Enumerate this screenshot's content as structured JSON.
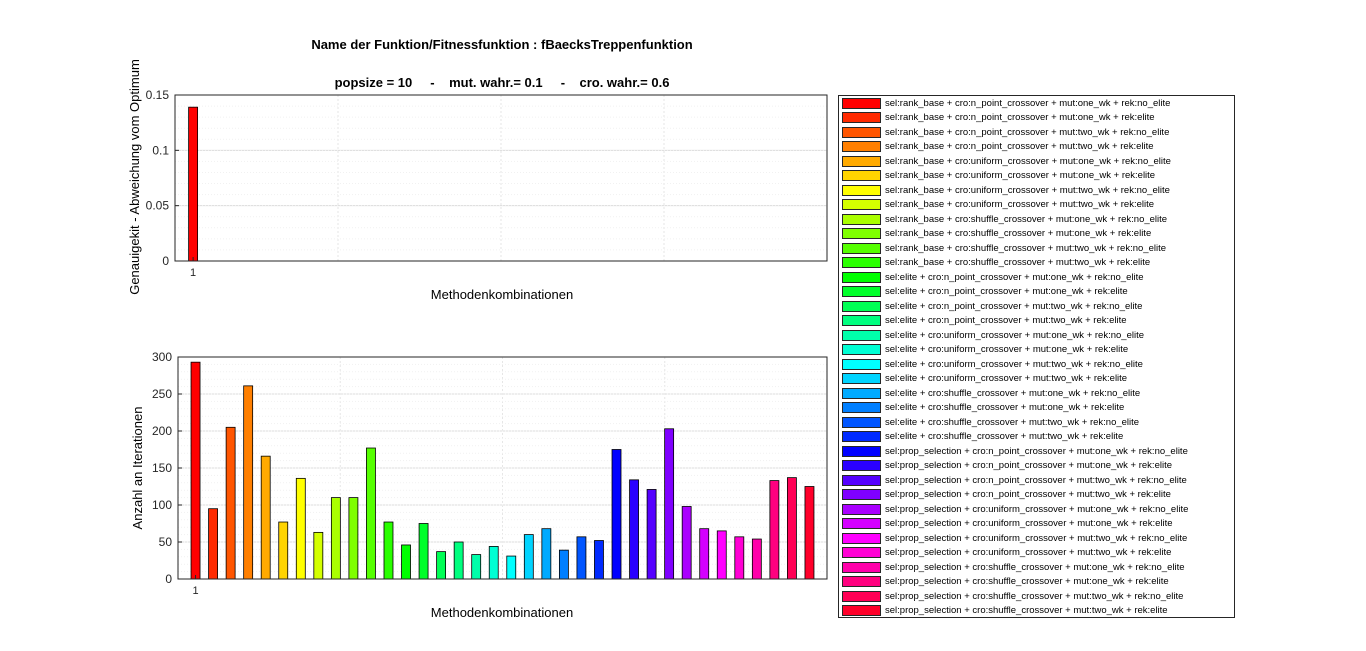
{
  "figure": {
    "title_line1": "Name der Funktion/Fitnessfunktion : fBaecksTreppenfunktion",
    "title_line2": "popsize = 10     -    mut. wahr.= 0.1     -    cro. wahr.= 0.6"
  },
  "chart_data": [
    {
      "type": "bar",
      "title": "",
      "xlabel": "Methodenkombinationen",
      "ylabel": "Genauigekit - Abweichung vom Optimum",
      "xlim": [
        0,
        36
      ],
      "ylim": [
        0,
        0.15
      ],
      "yticks": [
        0,
        0.05,
        0.1,
        0.15
      ],
      "ytick_labels": [
        "0",
        "0.05",
        "0.1",
        "0.15"
      ],
      "xticks": [
        1
      ],
      "xtick_labels": [
        "1"
      ],
      "grid": true,
      "categories": [
        1
      ],
      "values": [
        0.139
      ],
      "colors": [
        "#ff0000"
      ]
    },
    {
      "type": "bar",
      "title": "",
      "xlabel": "Methodenkombinationen",
      "ylabel": "Anzahl an Iterationen",
      "xlim": [
        0,
        37
      ],
      "ylim": [
        0,
        300
      ],
      "yticks": [
        0,
        50,
        100,
        150,
        200,
        250,
        300
      ],
      "ytick_labels": [
        "0",
        "50",
        "100",
        "150",
        "200",
        "250",
        "300"
      ],
      "xticks": [
        1
      ],
      "xtick_labels": [
        "1"
      ],
      "grid": true,
      "categories": [
        1,
        2,
        3,
        4,
        5,
        6,
        7,
        8,
        9,
        10,
        11,
        12,
        13,
        14,
        15,
        16,
        17,
        18,
        19,
        20,
        21,
        22,
        23,
        24,
        25,
        26,
        27,
        28,
        29,
        30,
        31,
        32,
        33,
        34,
        35,
        36
      ],
      "values": [
        293,
        95,
        205,
        261,
        166,
        77,
        136,
        63,
        110,
        110,
        177,
        77,
        46,
        75,
        37,
        50,
        33,
        44,
        31,
        60,
        68,
        39,
        57,
        52,
        175,
        134,
        121,
        203,
        98,
        68,
        65,
        57,
        54,
        133,
        137,
        125
      ]
    }
  ],
  "legend": {
    "placement": "right",
    "items": [
      {
        "label": "sel:rank_base + cro:n_point_crossover +  mut:one_wk +  rek:no_elite",
        "color": "#ff0000"
      },
      {
        "label": "sel:rank_base + cro:n_point_crossover +  mut:one_wk +  rek:elite",
        "color": "#ff2a00"
      },
      {
        "label": "sel:rank_base + cro:n_point_crossover +  mut:two_wk +  rek:no_elite",
        "color": "#ff5500"
      },
      {
        "label": "sel:rank_base + cro:n_point_crossover +  mut:two_wk +  rek:elite",
        "color": "#ff7f00"
      },
      {
        "label": "sel:rank_base + cro:uniform_crossover +  mut:one_wk +  rek:no_elite",
        "color": "#ffaa00"
      },
      {
        "label": "sel:rank_base + cro:uniform_crossover +  mut:one_wk +  rek:elite",
        "color": "#ffd400"
      },
      {
        "label": "sel:rank_base + cro:uniform_crossover +  mut:two_wk +  rek:no_elite",
        "color": "#ffff00"
      },
      {
        "label": "sel:rank_base + cro:uniform_crossover +  mut:two_wk +  rek:elite",
        "color": "#d4ff00"
      },
      {
        "label": "sel:rank_base + cro:shuffle_crossover +  mut:one_wk +  rek:no_elite",
        "color": "#aaff00"
      },
      {
        "label": "sel:rank_base + cro:shuffle_crossover +  mut:one_wk +  rek:elite",
        "color": "#7fff00"
      },
      {
        "label": "sel:rank_base + cro:shuffle_crossover +  mut:two_wk +  rek:no_elite",
        "color": "#55ff00"
      },
      {
        "label": "sel:rank_base + cro:shuffle_crossover +  mut:two_wk +  rek:elite",
        "color": "#2aff00"
      },
      {
        "label": "sel:elite + cro:n_point_crossover +  mut:one_wk +  rek:no_elite",
        "color": "#00ff00"
      },
      {
        "label": "sel:elite + cro:n_point_crossover +  mut:one_wk +  rek:elite",
        "color": "#00ff2a"
      },
      {
        "label": "sel:elite + cro:n_point_crossover +  mut:two_wk +  rek:no_elite",
        "color": "#00ff55"
      },
      {
        "label": "sel:elite + cro:n_point_crossover +  mut:two_wk +  rek:elite",
        "color": "#00ff7f"
      },
      {
        "label": "sel:elite + cro:uniform_crossover +  mut:one_wk +  rek:no_elite",
        "color": "#00ffaa"
      },
      {
        "label": "sel:elite + cro:uniform_crossover +  mut:one_wk +  rek:elite",
        "color": "#00ffd4"
      },
      {
        "label": "sel:elite + cro:uniform_crossover +  mut:two_wk +  rek:no_elite",
        "color": "#00ffff"
      },
      {
        "label": "sel:elite + cro:uniform_crossover +  mut:two_wk +  rek:elite",
        "color": "#00d4ff"
      },
      {
        "label": "sel:elite + cro:shuffle_crossover +  mut:one_wk +  rek:no_elite",
        "color": "#00aaff"
      },
      {
        "label": "sel:elite + cro:shuffle_crossover +  mut:one_wk +  rek:elite",
        "color": "#007fff"
      },
      {
        "label": "sel:elite + cro:shuffle_crossover +  mut:two_wk +  rek:no_elite",
        "color": "#0055ff"
      },
      {
        "label": "sel:elite + cro:shuffle_crossover +  mut:two_wk +  rek:elite",
        "color": "#002aff"
      },
      {
        "label": "sel:prop_selection + cro:n_point_crossover +  mut:one_wk +  rek:no_elite",
        "color": "#0000ff"
      },
      {
        "label": "sel:prop_selection + cro:n_point_crossover +  mut:one_wk +  rek:elite",
        "color": "#2a00ff"
      },
      {
        "label": "sel:prop_selection + cro:n_point_crossover +  mut:two_wk +  rek:no_elite",
        "color": "#5500ff"
      },
      {
        "label": "sel:prop_selection + cro:n_point_crossover +  mut:two_wk +  rek:elite",
        "color": "#7f00ff"
      },
      {
        "label": "sel:prop_selection + cro:uniform_crossover +  mut:one_wk +  rek:no_elite",
        "color": "#aa00ff"
      },
      {
        "label": "sel:prop_selection + cro:uniform_crossover +  mut:one_wk +  rek:elite",
        "color": "#d400ff"
      },
      {
        "label": "sel:prop_selection + cro:uniform_crossover +  mut:two_wk +  rek:no_elite",
        "color": "#ff00ff"
      },
      {
        "label": "sel:prop_selection + cro:uniform_crossover +  mut:two_wk +  rek:elite",
        "color": "#ff00d4"
      },
      {
        "label": "sel:prop_selection + cro:shuffle_crossover +  mut:one_wk +  rek:no_elite",
        "color": "#ff00aa"
      },
      {
        "label": "sel:prop_selection + cro:shuffle_crossover +  mut:one_wk +  rek:elite",
        "color": "#ff007f"
      },
      {
        "label": "sel:prop_selection + cro:shuffle_crossover +  mut:two_wk +  rek:no_elite",
        "color": "#ff0055"
      },
      {
        "label": "sel:prop_selection + cro:shuffle_crossover +  mut:two_wk +  rek:elite",
        "color": "#ff002a"
      }
    ]
  }
}
